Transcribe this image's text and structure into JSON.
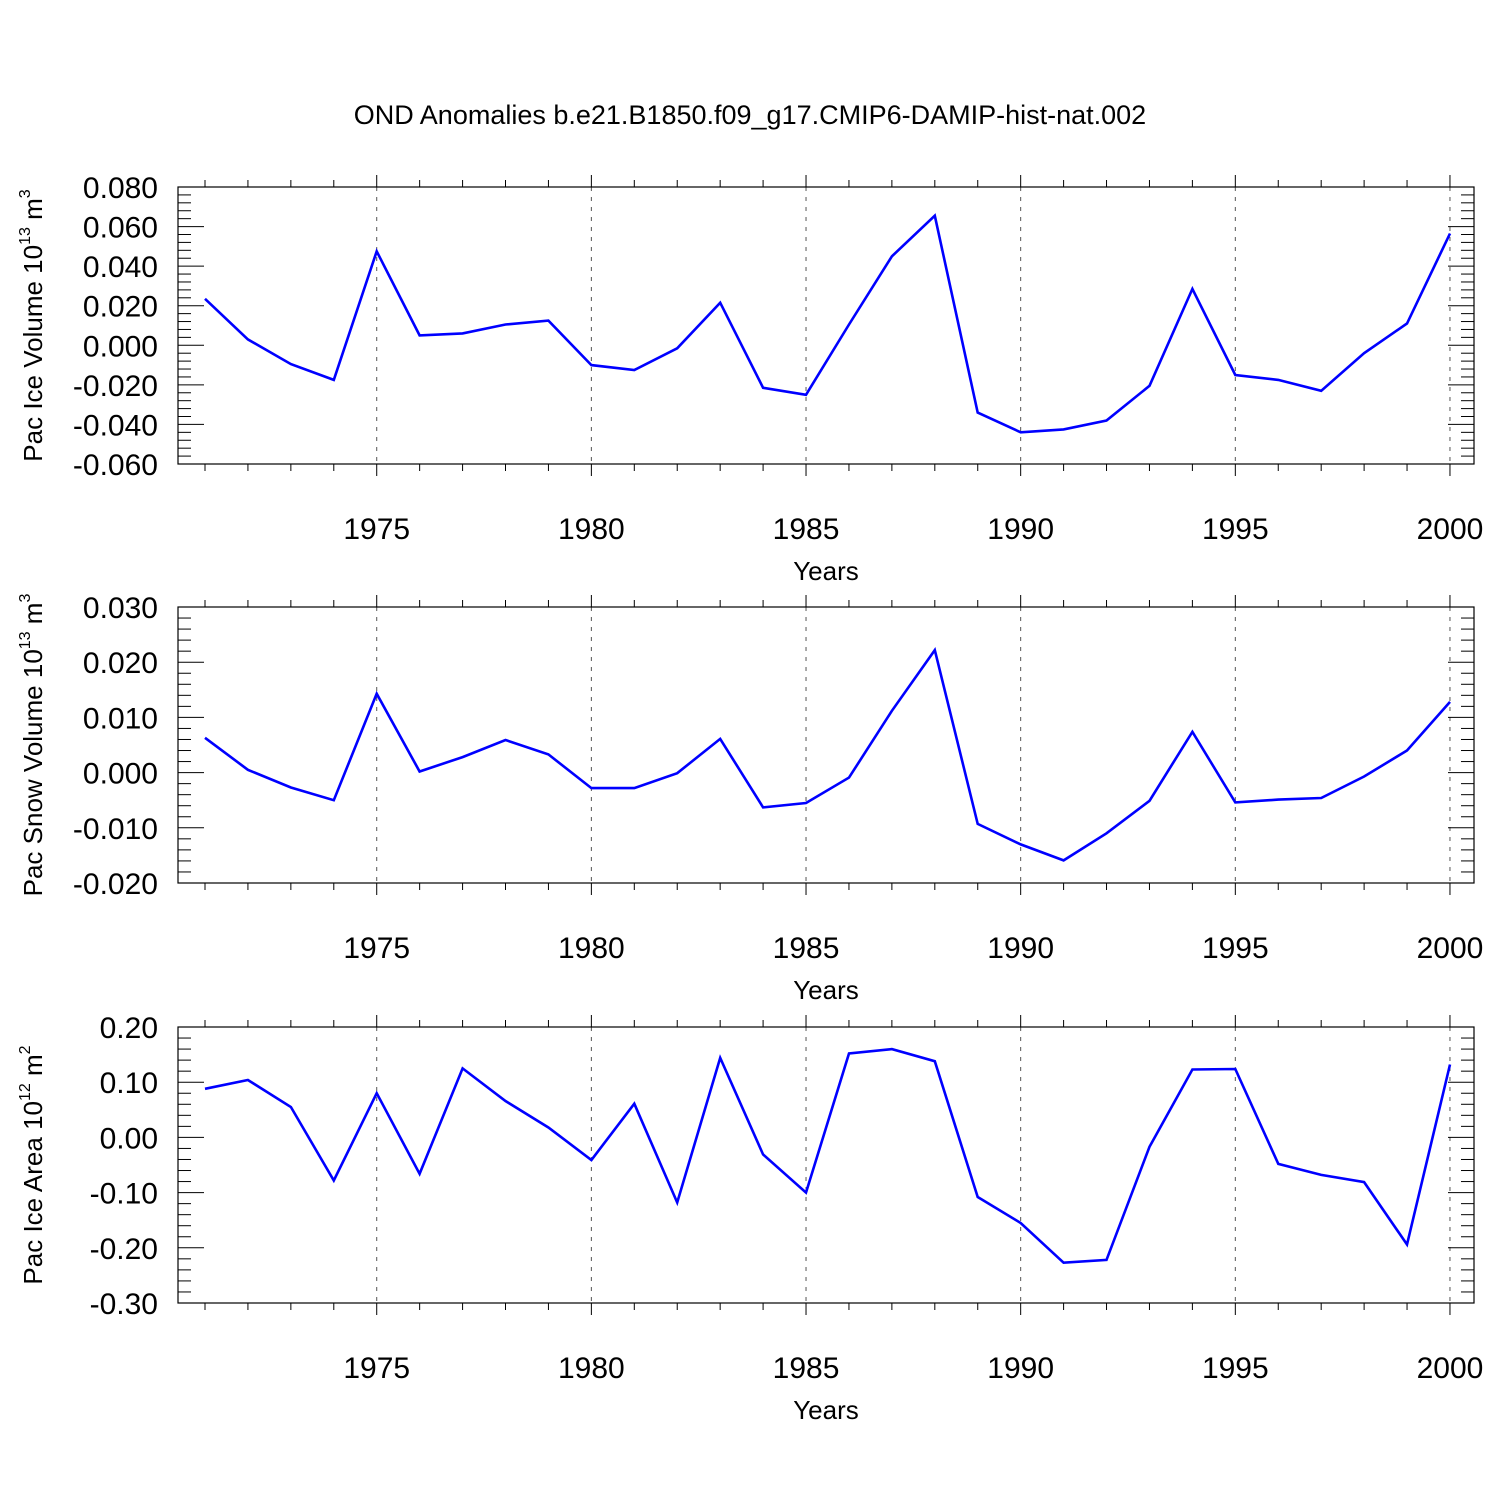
{
  "title": "OND Anomalies b.e21.B1850.f09_g17.CMIP6-DAMIP-hist-nat.002",
  "line_color": "#0000ff",
  "chart_data": [
    {
      "type": "line",
      "title": "",
      "xlabel": "Years",
      "ylabel": {
        "main": "Pac Ice Volume 10",
        "exponent": "13",
        "unit": " m",
        "unit_exponent": "3"
      },
      "xlim": [
        1971,
        2001
      ],
      "ylim": [
        -0.06,
        0.08
      ],
      "grid": "dashed vertical lines at major year ticks",
      "xticks": [
        1975,
        1980,
        1985,
        1990,
        1995,
        2000
      ],
      "yticks": [
        -0.06,
        -0.04,
        -0.02,
        0.0,
        0.02,
        0.04,
        0.06,
        0.08
      ],
      "ytick_labels": [
        "-0.060",
        "-0.040",
        "-0.020",
        "0.000",
        "0.020",
        "0.040",
        "0.060",
        "0.080"
      ],
      "x": [
        1971,
        1972,
        1973,
        1974,
        1975,
        1976,
        1977,
        1978,
        1979,
        1980,
        1981,
        1982,
        1983,
        1984,
        1985,
        1986,
        1987,
        1988,
        1989,
        1990,
        1991,
        1992,
        1993,
        1994,
        1995,
        1996,
        1997,
        1998,
        1999,
        2000
      ],
      "values": [
        0.0235,
        0.003,
        -0.0095,
        -0.0175,
        0.0475,
        0.005,
        0.006,
        0.0105,
        0.0125,
        -0.01,
        -0.0125,
        -0.0015,
        0.0215,
        -0.0215,
        -0.025,
        0.0105,
        0.045,
        0.0655,
        -0.034,
        -0.044,
        -0.0425,
        -0.038,
        -0.0205,
        0.0285,
        -0.015,
        -0.0175,
        -0.023,
        -0.004,
        0.011,
        0.0565
      ]
    },
    {
      "type": "line",
      "title": "",
      "xlabel": "Years",
      "ylabel": {
        "main": "Pac Snow Volume 10",
        "exponent": "13",
        "unit": " m",
        "unit_exponent": "3"
      },
      "xlim": [
        1971,
        2001
      ],
      "ylim": [
        -0.02,
        0.03
      ],
      "grid": "dashed vertical lines at major year ticks",
      "xticks": [
        1975,
        1980,
        1985,
        1990,
        1995,
        2000
      ],
      "yticks": [
        -0.02,
        -0.01,
        0.0,
        0.01,
        0.02,
        0.03
      ],
      "ytick_labels": [
        "-0.020",
        "-0.010",
        "0.000",
        "0.010",
        "0.020",
        "0.030"
      ],
      "x": [
        1971,
        1972,
        1973,
        1974,
        1975,
        1976,
        1977,
        1978,
        1979,
        1980,
        1981,
        1982,
        1983,
        1984,
        1985,
        1986,
        1987,
        1988,
        1989,
        1990,
        1991,
        1992,
        1993,
        1994,
        1995,
        1996,
        1997,
        1998,
        1999,
        2000
      ],
      "values": [
        0.0063,
        0.0005,
        -0.0027,
        -0.005,
        0.0143,
        0.0002,
        0.0028,
        0.0059,
        0.0033,
        -0.0028,
        -0.0028,
        -0.0001,
        0.0061,
        -0.0063,
        -0.0055,
        -0.0009,
        0.0112,
        0.0222,
        -0.0093,
        -0.013,
        -0.0159,
        -0.011,
        -0.0051,
        0.0074,
        -0.0054,
        -0.0049,
        -0.0046,
        -0.0007,
        0.004,
        0.0128
      ]
    },
    {
      "type": "line",
      "title": "",
      "xlabel": "Years",
      "ylabel": {
        "main": "Pac Ice Area 10",
        "exponent": "12",
        "unit": " m",
        "unit_exponent": "2"
      },
      "xlim": [
        1971,
        2001
      ],
      "ylim": [
        -0.3,
        0.2
      ],
      "grid": "dashed vertical lines at major year ticks",
      "xticks": [
        1975,
        1980,
        1985,
        1990,
        1995,
        2000
      ],
      "yticks": [
        -0.3,
        -0.2,
        -0.1,
        0.0,
        0.1,
        0.2
      ],
      "ytick_labels": [
        "-0.30",
        "-0.20",
        "-0.10",
        "0.00",
        "0.10",
        "0.20"
      ],
      "x": [
        1971,
        1972,
        1973,
        1974,
        1975,
        1976,
        1977,
        1978,
        1979,
        1980,
        1981,
        1982,
        1983,
        1984,
        1985,
        1986,
        1987,
        1988,
        1989,
        1990,
        1991,
        1992,
        1993,
        1994,
        1995,
        1996,
        1997,
        1998,
        1999,
        2000
      ],
      "values": [
        0.088,
        0.104,
        0.055,
        -0.078,
        0.08,
        -0.066,
        0.125,
        0.066,
        0.018,
        -0.041,
        0.061,
        -0.118,
        0.144,
        -0.031,
        -0.1,
        0.152,
        0.16,
        0.138,
        -0.108,
        -0.155,
        -0.227,
        -0.222,
        -0.017,
        0.123,
        0.124,
        -0.048,
        -0.068,
        -0.081,
        -0.194,
        0.132
      ]
    }
  ]
}
